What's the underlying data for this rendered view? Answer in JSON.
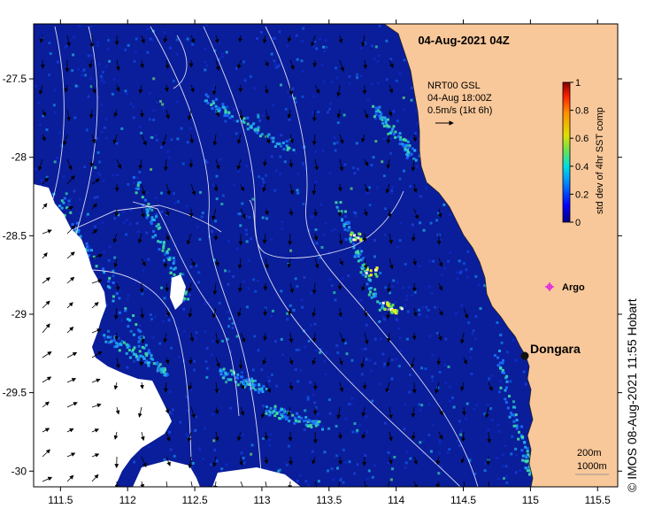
{
  "map": {
    "title": "04-Aug-2021 04Z",
    "copyright": "© IMOS 08-Aug-2021 11:55 Hobart",
    "lon_ticks": [
      "111.5",
      "112",
      "112.5",
      "113",
      "113.5",
      "114",
      "114.5",
      "115",
      "115.5"
    ],
    "lat_ticks": [
      "-27.5",
      "-28",
      "-28.5",
      "-29",
      "-29.5",
      "-30"
    ],
    "lon_range": [
      111.3,
      115.65
    ],
    "lat_range": [
      -27.15,
      -30.1
    ],
    "current_legend": {
      "line1": "NRT00 GSL",
      "line2": "04-Aug 18:00Z",
      "line3": "0.5m/s (1kt 6h)"
    },
    "colorbar": {
      "label": "std dev of 4hr SST comp",
      "ticks": [
        "1",
        "0.8",
        "0.6",
        "0.4",
        "0.2",
        "0"
      ]
    },
    "places": [
      {
        "name": "Dongara",
        "lon": 114.93,
        "lat": -29.25
      },
      {
        "name": "Argo",
        "lon": 115.12,
        "lat": -28.83
      }
    ],
    "contour_legend": {
      "line1": "200m",
      "line2": "1000m"
    },
    "colors": {
      "land": "#f9c89a",
      "ocean": "#0a1d9a",
      "cloud": "#ffffff",
      "argo": "#e21ee2",
      "isobath": "#ffffff"
    }
  }
}
